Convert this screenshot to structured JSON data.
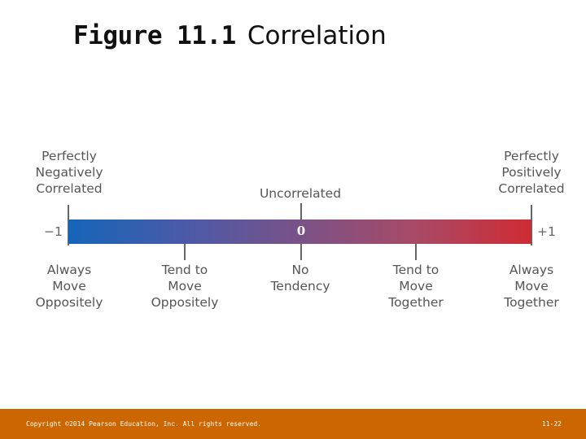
{
  "title": {
    "figure": "Figure 11.1",
    "subtitle": "Correlation"
  },
  "scale": {
    "min_label": "−1",
    "max_label": "+1",
    "zero_label": "0",
    "top_labels": {
      "left": [
        "Perfectly",
        "Negatively",
        "Correlated"
      ],
      "center": [
        "Uncorrelated"
      ],
      "right": [
        "Perfectly",
        "Positively",
        "Correlated"
      ]
    },
    "bottom_labels": [
      [
        "Always",
        "Move",
        "Oppositely"
      ],
      [
        "Tend to",
        "Move",
        "Oppositely"
      ],
      [
        "No",
        "Tendency"
      ],
      [
        "Tend to",
        "Move",
        "Together"
      ],
      [
        "Always",
        "Move",
        "Together"
      ]
    ],
    "colors": {
      "negative": "#1565b8",
      "positive": "#cf2b33"
    }
  },
  "footer": {
    "copyright": "Copyright ©2014 Pearson Education, Inc. All rights reserved.",
    "page": "11-22",
    "color": "#cc6600"
  }
}
